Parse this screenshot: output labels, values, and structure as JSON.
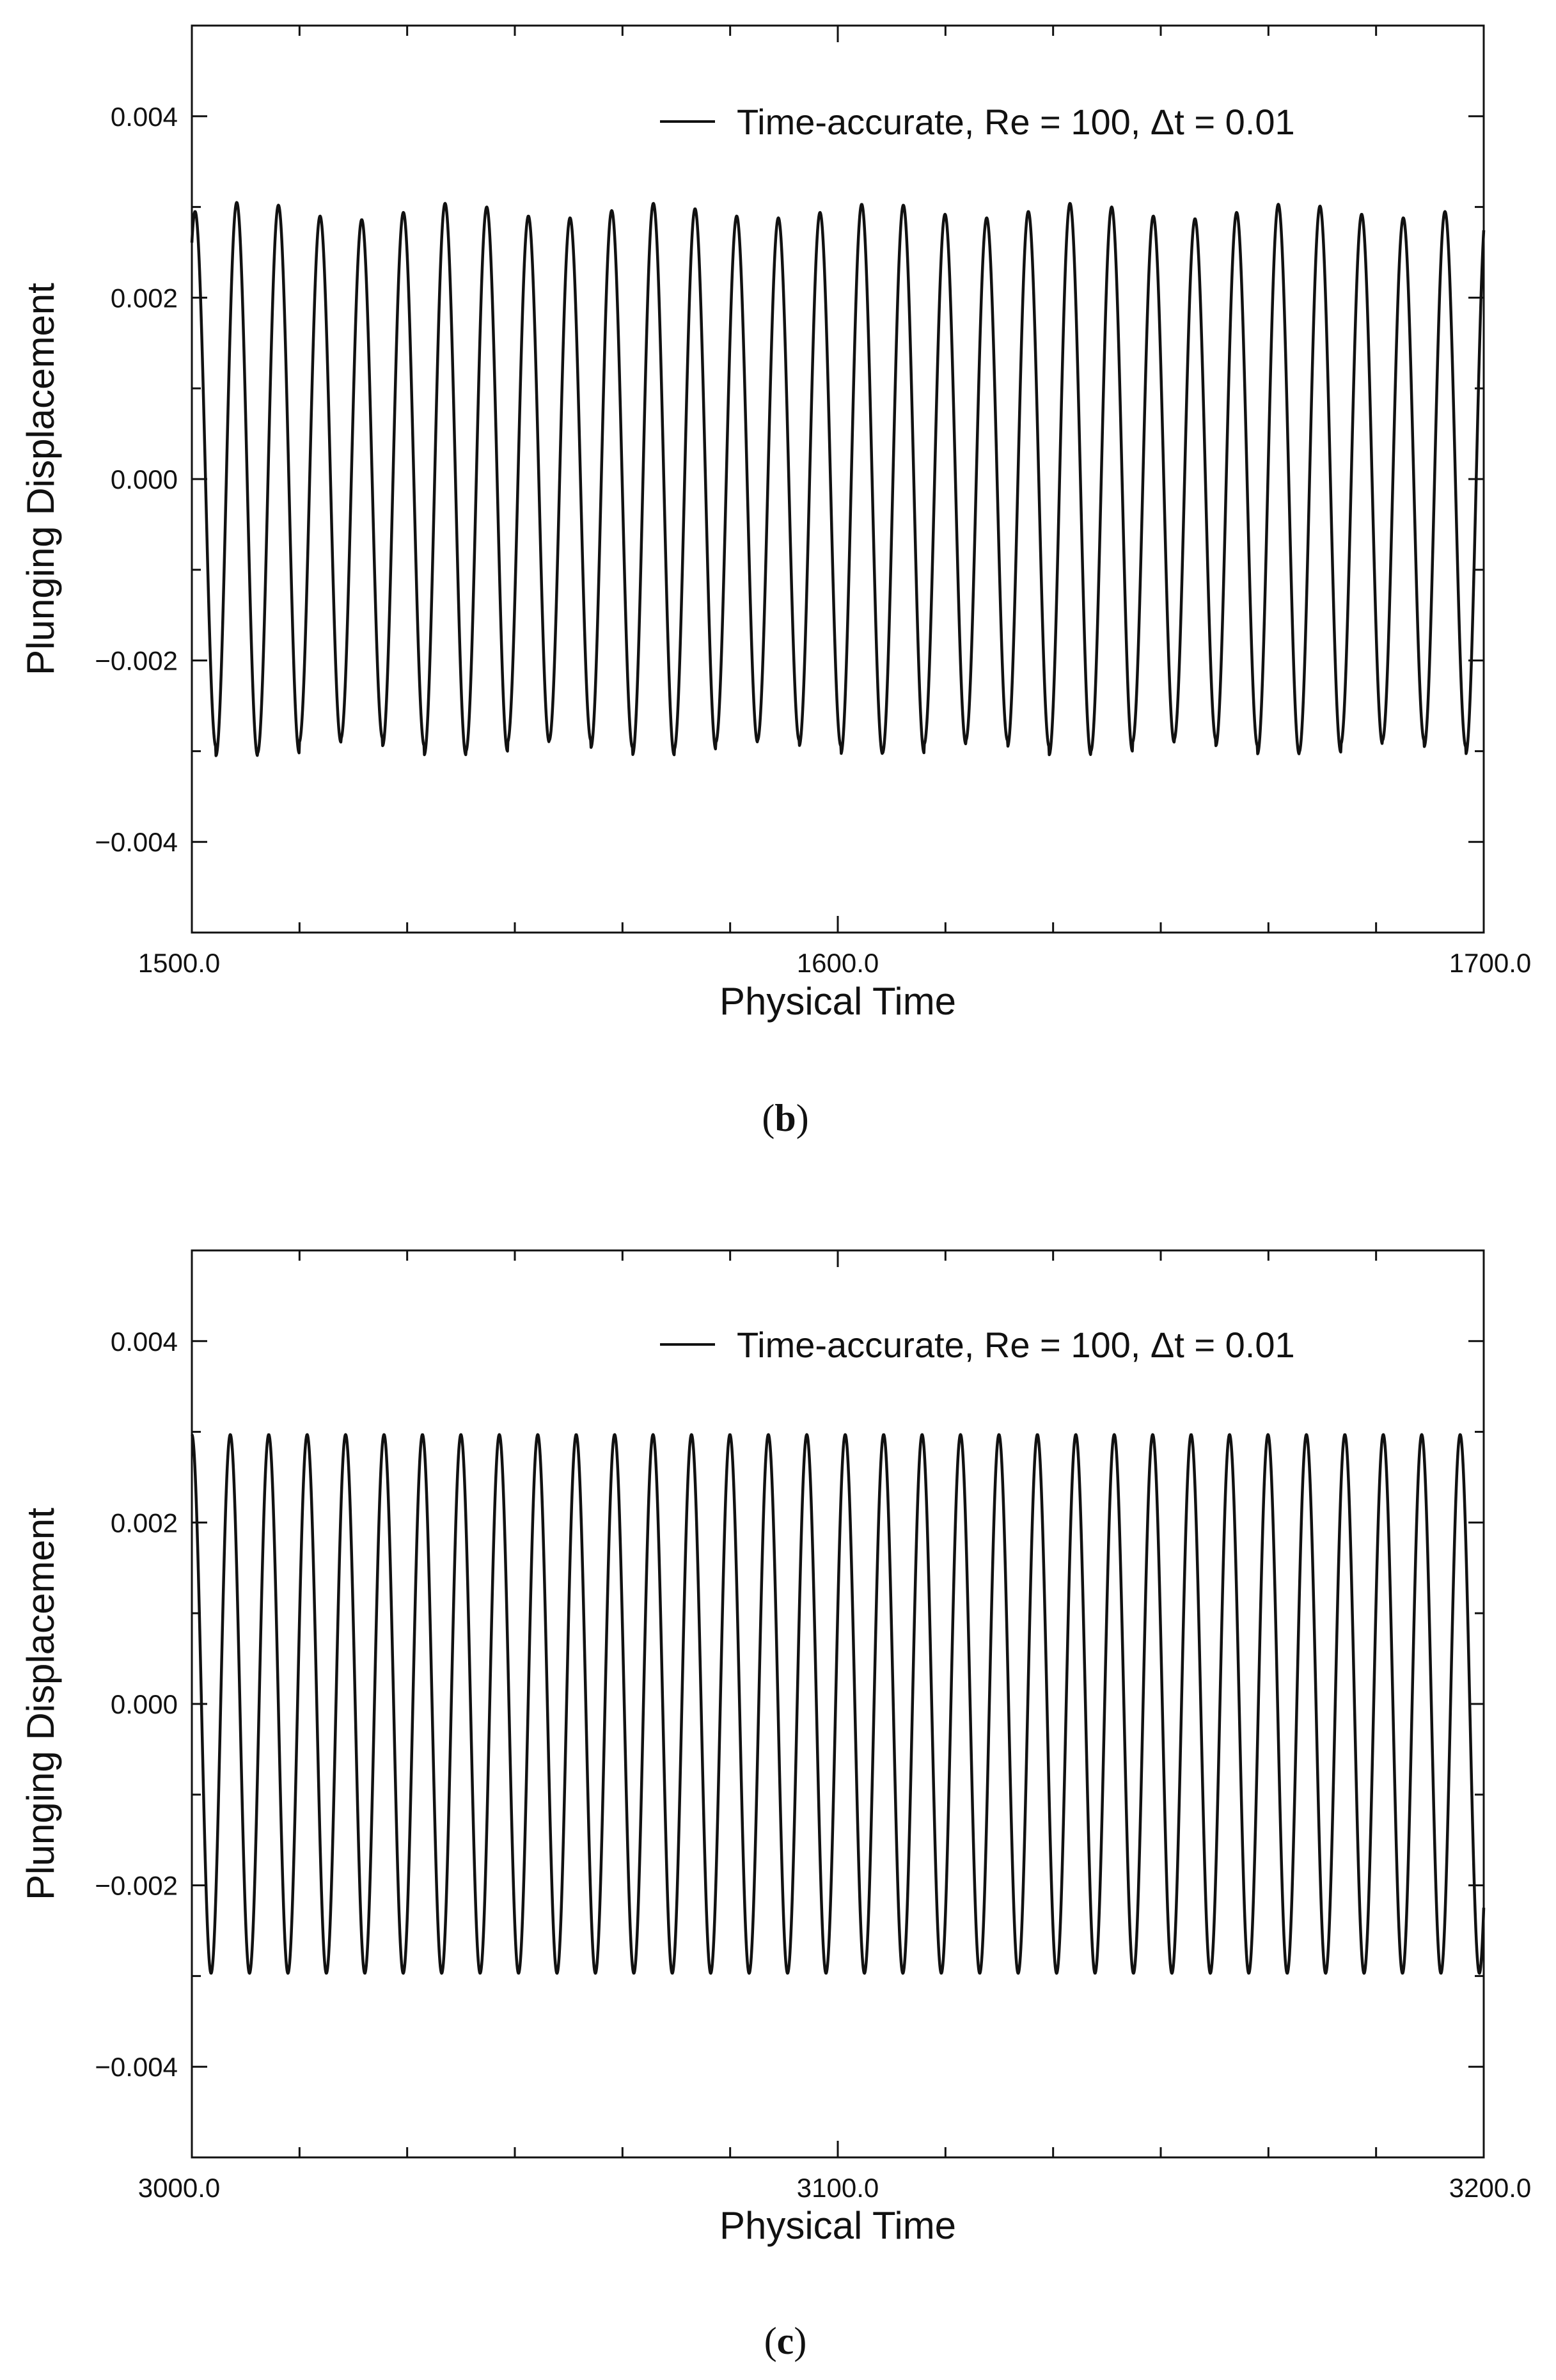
{
  "chart_data": [
    {
      "type": "line",
      "panel_label": "b",
      "xlabel": "Physical Time",
      "ylabel": "Plunging Displacement",
      "xlim": [
        1500.0,
        1700.0
      ],
      "ylim": [
        -0.005,
        0.005
      ],
      "x_ticks": [
        "1500.0",
        "1600.0",
        "1700.0"
      ],
      "y_ticks": [
        "0.004",
        "0.002",
        "0.000",
        "−0.002",
        "−0.004"
      ],
      "y_tick_values": [
        0.004,
        0.002,
        0.0,
        -0.002,
        -0.004
      ],
      "x_tick_values": [
        1500.0,
        1600.0,
        1700.0
      ],
      "grid": false,
      "legend_position": "top-right",
      "series": [
        {
          "name": "Time-accurate, Re = 100, Δt = 0.01",
          "color": "#111111",
          "signal": {
            "form": "sinusoid",
            "amplitude_min": 0.00285,
            "amplitude_max": 0.00305,
            "period": 6.45,
            "x_start_phase_peak": 1500.5,
            "peaks": [
              0.00295,
              0.00305,
              0.00302,
              0.0029,
              0.00286,
              0.00294,
              0.00304,
              0.003,
              0.0029,
              0.00288,
              0.00296,
              0.00304,
              0.00298,
              0.0029,
              0.00288,
              0.00294,
              0.00303,
              0.00302,
              0.00292,
              0.00288,
              0.00295,
              0.00304,
              0.003,
              0.0029,
              0.00287,
              0.00294,
              0.00303,
              0.00301,
              0.00292,
              0.00288,
              0.00295,
              0.00303,
              0.003,
              0.00295
            ]
          }
        }
      ]
    },
    {
      "type": "line",
      "panel_label": "c",
      "xlabel": "Physical Time",
      "ylabel": "Plunging Displacement",
      "xlim": [
        3000.0,
        3200.0
      ],
      "ylim": [
        -0.005,
        0.005
      ],
      "x_ticks": [
        "3000.0",
        "3100.0",
        "3200.0"
      ],
      "y_ticks": [
        "0.004",
        "0.002",
        "0.000",
        "−0.002",
        "−0.004"
      ],
      "y_tick_values": [
        0.004,
        0.002,
        0.0,
        -0.002,
        -0.004
      ],
      "x_tick_values": [
        3000.0,
        3100.0,
        3200.0
      ],
      "grid": false,
      "legend_position": "top-right",
      "series": [
        {
          "name": "Time-accurate, Re = 100, Δt = 0.01",
          "color": "#111111",
          "signal": {
            "form": "sinusoid",
            "amplitude_min": 0.00297,
            "amplitude_max": 0.00297,
            "period": 5.95,
            "x_start_phase_peak": 3000.0,
            "peaks": []
          }
        }
      ]
    }
  ]
}
